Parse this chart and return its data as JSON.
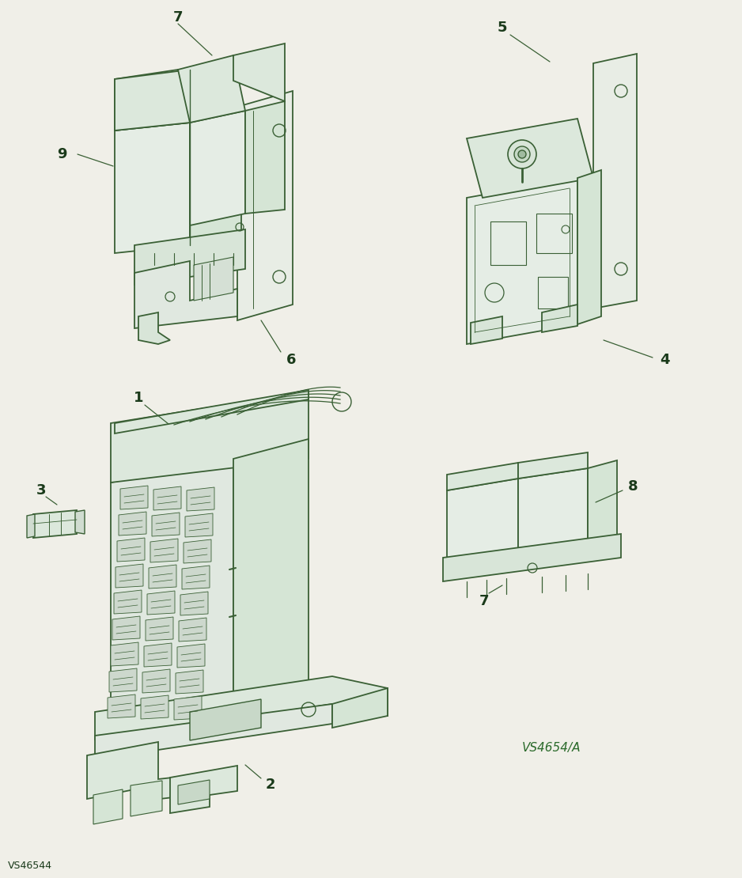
{
  "bg_color": "#f0efe8",
  "line_color": "#3a6035",
  "label_color": "#1a3a1a",
  "ref_code": "VS4654/A",
  "bottom_ref": "VS46544",
  "fig_w": 9.38,
  "fig_h": 11.1,
  "dpi": 100
}
